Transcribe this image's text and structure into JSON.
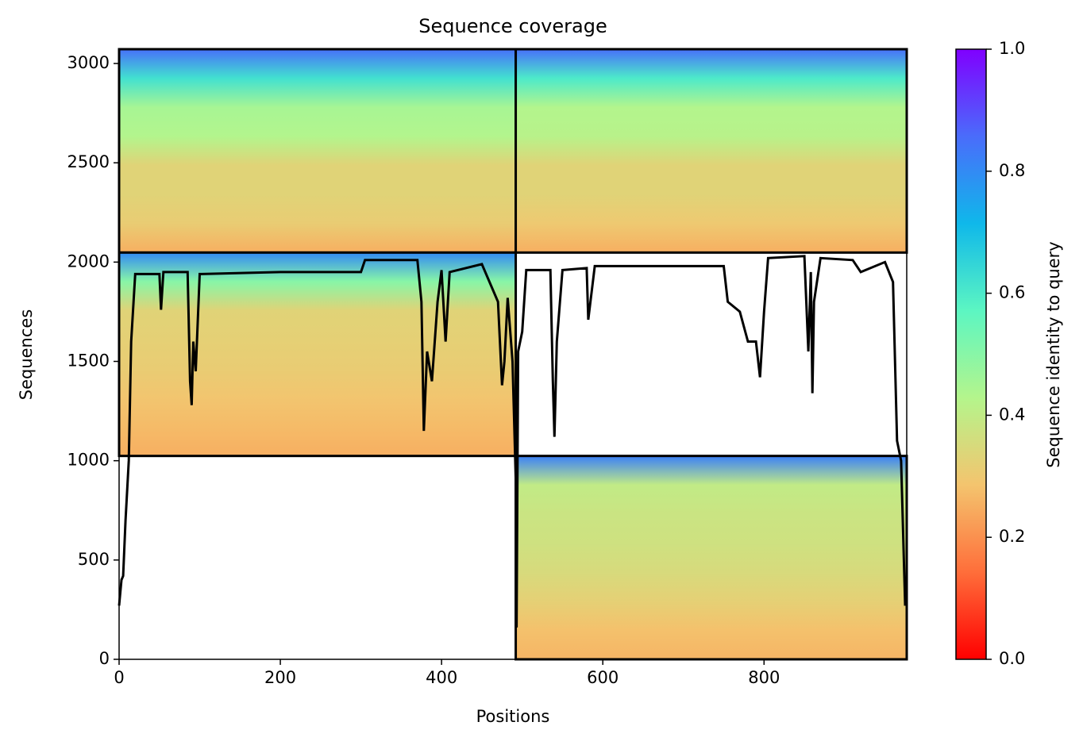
{
  "chart_data": {
    "type": "coverage",
    "title": "Sequence coverage",
    "xlabel": "Positions",
    "ylabel": "Sequences",
    "xlim": [
      0,
      977
    ],
    "ylim": [
      0,
      3072
    ],
    "xticks": [
      0,
      200,
      400,
      600,
      800
    ],
    "yticks": [
      0,
      500,
      1000,
      1500,
      2000,
      2500,
      3000
    ],
    "blocks": [
      {
        "xrange": [
          0,
          492
        ],
        "yrange": [
          2048,
          3072
        ],
        "profile": [
          0.85,
          0.62,
          0.45,
          0.43,
          0.33,
          0.33,
          0.31,
          0.25
        ]
      },
      {
        "xrange": [
          492,
          977
        ],
        "yrange": [
          2048,
          3072
        ],
        "profile": [
          0.85,
          0.6,
          0.43,
          0.42,
          0.33,
          0.33,
          0.3,
          0.25
        ]
      },
      {
        "xrange": [
          0,
          492
        ],
        "yrange": [
          1024,
          2048
        ],
        "profile": [
          0.8,
          0.5,
          0.33,
          0.32,
          0.31,
          0.29,
          0.27,
          0.25
        ]
      },
      {
        "xrange": [
          492,
          977
        ],
        "yrange": [
          0,
          1024
        ],
        "profile": [
          0.82,
          0.4,
          0.38,
          0.37,
          0.35,
          0.32,
          0.28,
          0.26
        ]
      }
    ],
    "line": {
      "color": "#000000",
      "x": [
        0,
        3,
        5,
        8,
        12,
        15,
        20,
        50,
        52,
        55,
        85,
        88,
        90,
        92,
        95,
        100,
        200,
        300,
        305,
        370,
        375,
        378,
        382,
        388,
        395,
        400,
        405,
        410,
        450,
        470,
        475,
        478,
        482,
        488,
        492,
        493,
        495,
        500,
        505,
        535,
        538,
        540,
        543,
        550,
        580,
        582,
        590,
        700,
        750,
        755,
        770,
        780,
        790,
        795,
        800,
        805,
        850,
        855,
        858,
        860,
        862,
        870,
        910,
        920,
        950,
        960,
        965,
        970,
        975
      ],
      "values": [
        270,
        400,
        420,
        700,
        1000,
        1600,
        1940,
        1940,
        1760,
        1950,
        1950,
        1400,
        1280,
        1600,
        1450,
        1940,
        1950,
        1950,
        2010,
        2010,
        1800,
        1150,
        1550,
        1400,
        1800,
        1960,
        1600,
        1950,
        1990,
        1800,
        1380,
        1500,
        1820,
        1500,
        900,
        160,
        1550,
        1650,
        1960,
        1960,
        1400,
        1120,
        1600,
        1960,
        1970,
        1710,
        1980,
        1980,
        1980,
        1800,
        1750,
        1600,
        1600,
        1420,
        1750,
        2020,
        2030,
        1550,
        1950,
        1340,
        1800,
        2020,
        2010,
        1950,
        2000,
        1900,
        1100,
        1000,
        270
      ]
    },
    "colorbar": {
      "label": "Sequence identity to query",
      "clim": [
        0,
        1
      ],
      "ticks": [
        {
          "value": 0,
          "label": "0.0"
        },
        {
          "value": 0.2,
          "label": "0.2"
        },
        {
          "value": 0.4,
          "label": "0.4"
        },
        {
          "value": 0.6,
          "label": "0.6"
        },
        {
          "value": 0.8,
          "label": "0.8"
        },
        {
          "value": 1,
          "label": "1.0"
        }
      ],
      "colors": [
        "#ff0000",
        "#ff6e3a",
        "#f4c46e",
        "#b4f58c",
        "#5cf6c2",
        "#0fb8ea",
        "#4a6cfb",
        "#8000ff"
      ]
    }
  }
}
